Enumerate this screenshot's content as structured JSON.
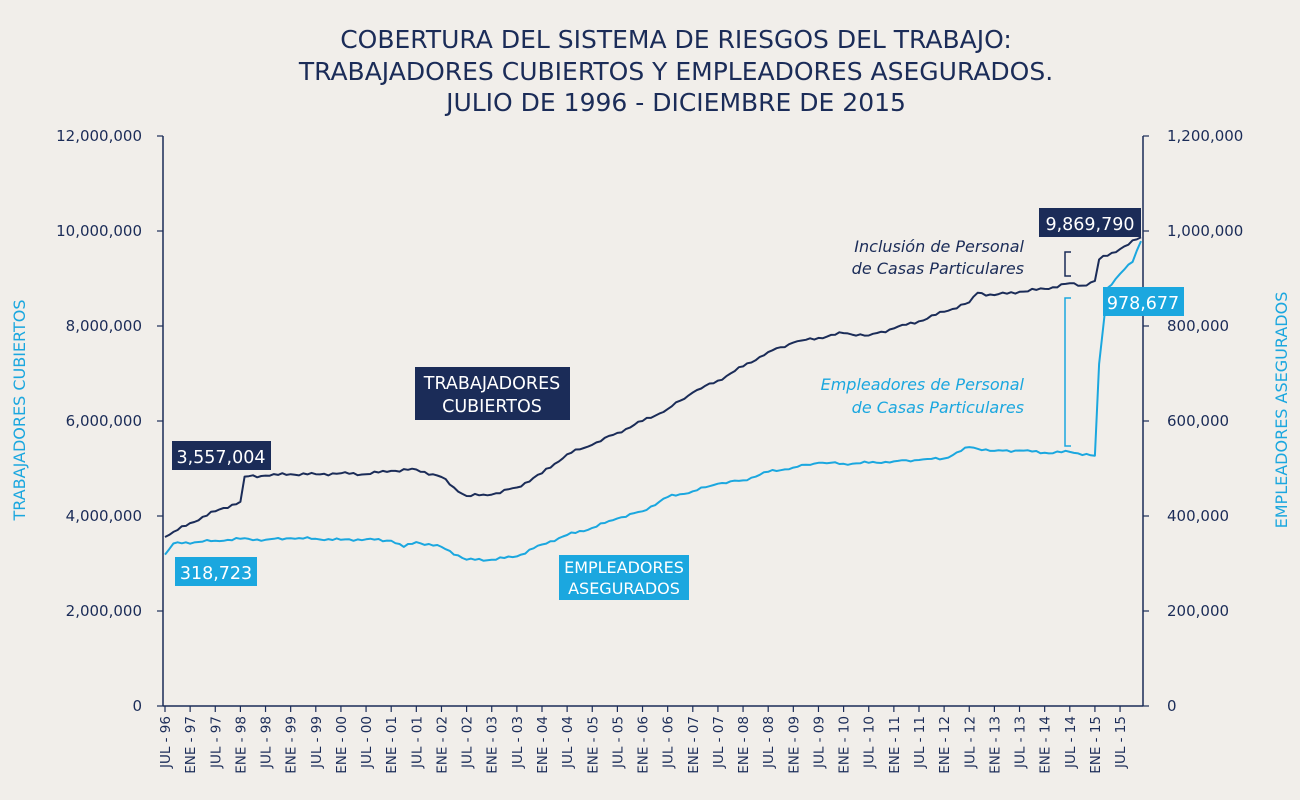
{
  "colors": {
    "background": "#f1eeea",
    "dark": "#1b2c58",
    "light": "#1ba7df"
  },
  "chart_data": {
    "type": "line",
    "title_lines": [
      "COBERTURA DEL SISTEMA DE RIESGOS DEL TRABAJO:",
      "TRABAJADORES CUBIERTOS Y EMPLEADORES ASEGURADOS.",
      "JULIO DE 1996 - DICIEMBRE DE 2015"
    ],
    "ylabel_left": "TRABAJADORES CUBIERTOS",
    "ylabel_right": "EMPLEADORES ASEGURADOS",
    "ylim_left": [
      0,
      12000000
    ],
    "ylim_right": [
      0,
      1200000
    ],
    "yticks_left": [
      "0",
      "2,000,000",
      "4,000,000",
      "6,000,000",
      "8,000,000",
      "10,000,000",
      "12,000,000"
    ],
    "yticks_right": [
      "0",
      "200,000",
      "400,000",
      "600,000",
      "800,000",
      "1,000,000",
      "1,200,000"
    ],
    "x_period": "July 1996 - December 2015 (monthly, 234 points)",
    "xticks": [
      "JUL - 96",
      "ENE - 97",
      "JUL - 97",
      "ENE - 98",
      "JUL - 98",
      "ENE - 99",
      "JUL - 99",
      "ENE - 00",
      "JUL - 00",
      "ENE - 01",
      "JUL - 01",
      "ENE - 02",
      "JUL - 02",
      "ENE - 03",
      "JUL - 03",
      "ENE - 04",
      "JUL - 04",
      "ENE - 05",
      "JUL - 05",
      "ENE - 06",
      "JUL - 06",
      "ENE - 07",
      "JUL - 07",
      "ENE - 08",
      "JUL - 08",
      "ENE - 09",
      "JUL - 09",
      "ENE - 10",
      "JUL - 10",
      "ENE - 11",
      "JUL - 11",
      "ENE - 12",
      "JUL - 12",
      "ENE - 13",
      "JUL - 13",
      "ENE - 14",
      "JUL - 14",
      "ENE - 15",
      "JUL - 15"
    ],
    "series": [
      {
        "name": "TRABAJADORES CUBIERTOS",
        "axis": "left",
        "label_lines": [
          "TRABAJADORES",
          "CUBIERTOS"
        ],
        "anchors": [
          [
            0,
            3557004
          ],
          [
            6,
            3850000
          ],
          [
            12,
            4100000
          ],
          [
            18,
            4300000
          ],
          [
            19,
            4830000
          ],
          [
            24,
            4850000
          ],
          [
            30,
            4880000
          ],
          [
            36,
            4880000
          ],
          [
            42,
            4900000
          ],
          [
            48,
            4880000
          ],
          [
            54,
            4950000
          ],
          [
            60,
            4980000
          ],
          [
            66,
            4820000
          ],
          [
            69,
            4600000
          ],
          [
            72,
            4420000
          ],
          [
            78,
            4450000
          ],
          [
            84,
            4600000
          ],
          [
            90,
            4900000
          ],
          [
            96,
            5300000
          ],
          [
            102,
            5500000
          ],
          [
            108,
            5750000
          ],
          [
            114,
            6000000
          ],
          [
            120,
            6250000
          ],
          [
            126,
            6600000
          ],
          [
            132,
            6850000
          ],
          [
            138,
            7150000
          ],
          [
            144,
            7450000
          ],
          [
            150,
            7650000
          ],
          [
            156,
            7750000
          ],
          [
            162,
            7850000
          ],
          [
            168,
            7800000
          ],
          [
            174,
            7950000
          ],
          [
            180,
            8100000
          ],
          [
            186,
            8300000
          ],
          [
            192,
            8500000
          ],
          [
            194,
            8700000
          ],
          [
            198,
            8650000
          ],
          [
            204,
            8720000
          ],
          [
            210,
            8780000
          ],
          [
            216,
            8900000
          ],
          [
            219,
            8850000
          ],
          [
            222,
            8950000
          ],
          [
            223,
            9400000
          ],
          [
            228,
            9620000
          ],
          [
            233,
            9869790
          ]
        ],
        "first_value_label": "3,557,004",
        "last_value_label": "9,869,790"
      },
      {
        "name": "EMPLEADORES ASEGURADOS",
        "axis": "right",
        "label_lines": [
          "EMPLEADORES",
          "ASEGURADOS"
        ],
        "anchors": [
          [
            0,
            318723
          ],
          [
            2,
            342000
          ],
          [
            12,
            348000
          ],
          [
            18,
            352000
          ],
          [
            24,
            350000
          ],
          [
            30,
            353000
          ],
          [
            36,
            352000
          ],
          [
            42,
            350000
          ],
          [
            48,
            351000
          ],
          [
            54,
            348000
          ],
          [
            57,
            335000
          ],
          [
            60,
            345000
          ],
          [
            66,
            335000
          ],
          [
            72,
            308000
          ],
          [
            78,
            308000
          ],
          [
            84,
            315000
          ],
          [
            90,
            340000
          ],
          [
            96,
            360000
          ],
          [
            102,
            375000
          ],
          [
            108,
            395000
          ],
          [
            114,
            410000
          ],
          [
            120,
            440000
          ],
          [
            126,
            452000
          ],
          [
            132,
            468000
          ],
          [
            138,
            475000
          ],
          [
            144,
            493000
          ],
          [
            150,
            502000
          ],
          [
            156,
            512000
          ],
          [
            162,
            510000
          ],
          [
            168,
            512000
          ],
          [
            174,
            515000
          ],
          [
            180,
            518000
          ],
          [
            186,
            521000
          ],
          [
            192,
            545000
          ],
          [
            198,
            537000
          ],
          [
            204,
            538000
          ],
          [
            210,
            533000
          ],
          [
            216,
            535000
          ],
          [
            222,
            527000
          ],
          [
            223,
            720000
          ],
          [
            225,
            880000
          ],
          [
            228,
            910000
          ],
          [
            231,
            935000
          ],
          [
            233,
            978677
          ]
        ],
        "first_value_label": "318,723",
        "last_value_label": "978,677"
      }
    ],
    "annotations": [
      {
        "lines": [
          "Inclusión de Personal",
          "de Casas Particulares"
        ],
        "series": "TRABAJADORES CUBIERTOS"
      },
      {
        "lines": [
          "Empleadores de Personal",
          "de Casas Particulares"
        ],
        "series": "EMPLEADORES ASEGURADOS"
      }
    ]
  }
}
